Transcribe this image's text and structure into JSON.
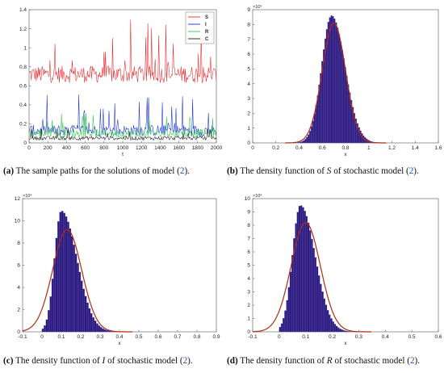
{
  "chart_data": [
    {
      "type": "line",
      "id": "a",
      "xlabel": "t",
      "ylabel": "",
      "xlim": [
        0,
        2000
      ],
      "ylim": [
        0,
        1.4
      ],
      "xticks": [
        "0",
        "200",
        "400",
        "600",
        "800",
        "1000",
        "1200",
        "1400",
        "1600",
        "1800",
        "2000"
      ],
      "yticks": [
        "0",
        "0.2",
        "0.4",
        "0.6",
        "0.8",
        "1",
        "1.2",
        "1.4"
      ],
      "legend": "top-right",
      "series": [
        {
          "name": "S",
          "color": "#e8262a",
          "mean": 0.72,
          "spread": 0.09,
          "peak": 1.3
        },
        {
          "name": "I",
          "color": "#1a2fd6",
          "mean": 0.13,
          "spread": 0.06,
          "peak": 0.52
        },
        {
          "name": "R",
          "color": "#2ecc4a",
          "mean": 0.1,
          "spread": 0.045,
          "peak": 0.33
        },
        {
          "name": "C",
          "color": "#1a1a1a",
          "mean": 0.05,
          "spread": 0.02,
          "peak": 0.16
        }
      ],
      "caption_label": "(a)",
      "caption_text": "The sample paths for the solutions of model (",
      "caption_ref": "2",
      "caption_end": ")."
    },
    {
      "type": "histogram",
      "id": "b",
      "xlabel": "x",
      "xlim": [
        0,
        1.6
      ],
      "ylim": [
        0,
        9
      ],
      "yexp": "×10⁵",
      "xticks": [
        "0",
        "0.2",
        "0.4",
        "0.6",
        "0.8",
        "1",
        "1.2",
        "1.4",
        "1.6"
      ],
      "yticks": [
        "0",
        "1",
        "2",
        "3",
        "4",
        "5",
        "6",
        "7",
        "8",
        "9"
      ],
      "dist": {
        "mu": 0.68,
        "sl": 0.085,
        "sr": 0.115,
        "peak": 8.6,
        "from": 0.33,
        "to": 1.12
      },
      "fit": {
        "mu": 0.7,
        "sigma": 0.1,
        "peak": 8.1
      },
      "caption_label": "(b)",
      "caption_pre": "The density function of ",
      "caption_var": "S",
      "caption_post": " of stochastic model (",
      "caption_ref": "2",
      "caption_end": ")."
    },
    {
      "type": "histogram",
      "id": "c",
      "xlabel": "x",
      "xlim": [
        -0.1,
        0.9
      ],
      "ylim": [
        0,
        12
      ],
      "yexp": "×10⁶",
      "xticks": [
        "-0.1",
        "0",
        "0.1",
        "0.2",
        "0.3",
        "0.4",
        "0.5",
        "0.6",
        "0.7",
        "0.8",
        "0.9"
      ],
      "yticks": [
        "0",
        "2",
        "4",
        "6",
        "8",
        "10",
        "12"
      ],
      "dist": {
        "mu": 0.1,
        "sl": 0.035,
        "sr": 0.08,
        "peak": 10.9,
        "from": 0.0,
        "to": 0.6
      },
      "fit": {
        "mu": 0.13,
        "sigma": 0.075,
        "peak": 9.2
      },
      "caption_label": "(c)",
      "caption_pre": "The density function of ",
      "caption_var": "I",
      "caption_post": " of stochastic model (",
      "caption_ref": "2",
      "caption_end": ")."
    },
    {
      "type": "histogram",
      "id": "d",
      "xlabel": "x",
      "xlim": [
        -0.1,
        0.6
      ],
      "ylim": [
        0,
        10
      ],
      "yexp": "×10⁶",
      "xticks": [
        "-0.1",
        "0",
        "0.1",
        "0.2",
        "0.3",
        "0.4",
        "0.5",
        "0.6"
      ],
      "yticks": [
        "0",
        "1",
        "2",
        "3",
        "4",
        "5",
        "6",
        "7",
        "8",
        "9",
        "10"
      ],
      "dist": {
        "mu": 0.08,
        "sl": 0.03,
        "sr": 0.055,
        "peak": 9.5,
        "from": 0.0,
        "to": 0.4
      },
      "fit": {
        "mu": 0.1,
        "sigma": 0.055,
        "peak": 8.2
      },
      "caption_label": "(d)",
      "caption_pre": "The density function of ",
      "caption_var": "R",
      "caption_post": " of stochastic model (",
      "caption_ref": "2",
      "caption_end": ")."
    }
  ]
}
